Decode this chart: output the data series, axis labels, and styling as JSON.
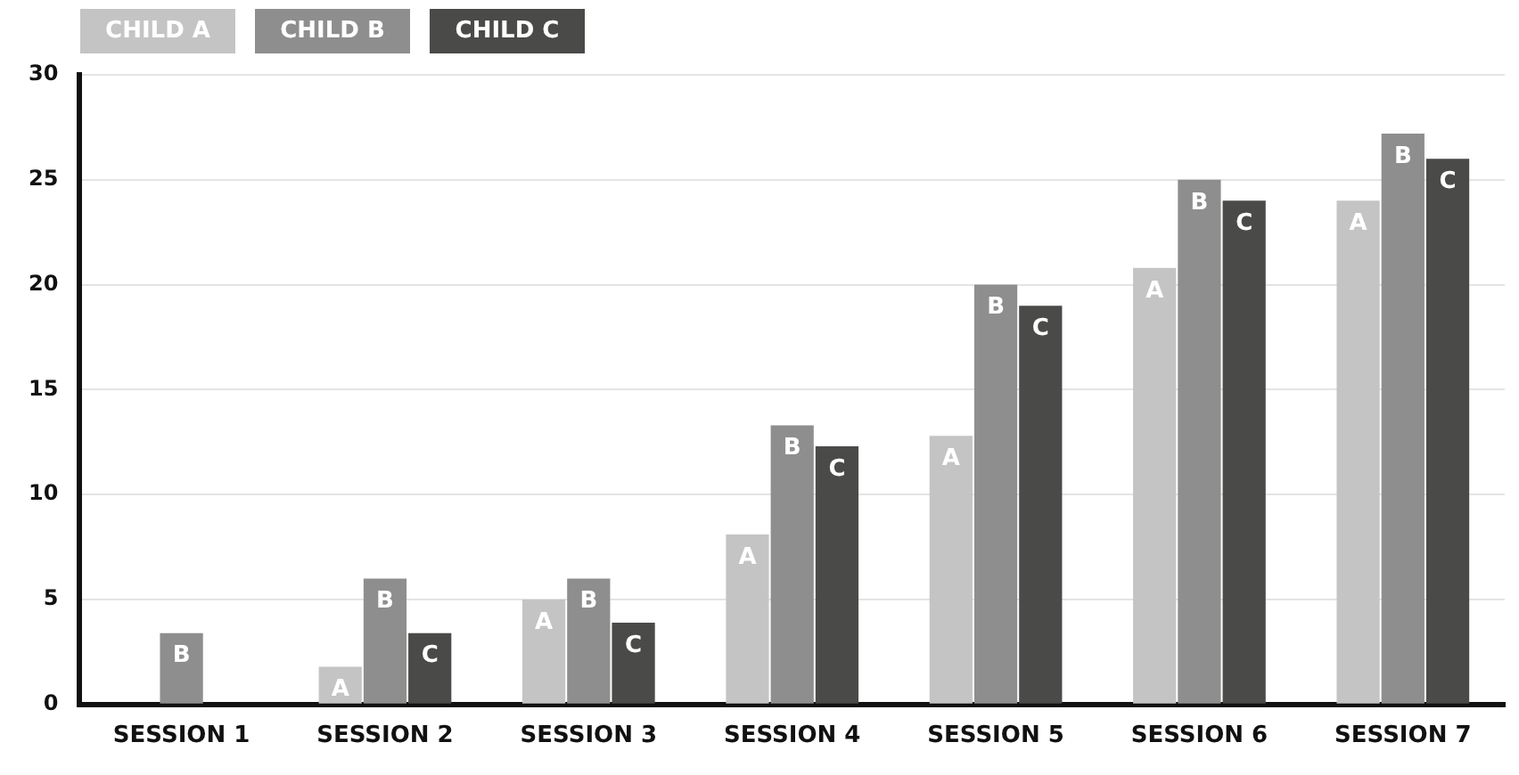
{
  "chart_data": {
    "type": "bar",
    "categories": [
      "SESSION 1",
      "SESSION 2",
      "SESSION 3",
      "SESSION 4",
      "SESSION 5",
      "SESSION 6",
      "SESSION 7"
    ],
    "series": [
      {
        "name": "CHILD A",
        "color": "#c4c4c4",
        "values": [
          null,
          1.8,
          5,
          8.1,
          12.8,
          20.8,
          24
        ],
        "value_labels": [
          null,
          "A",
          "A",
          "A",
          "A",
          "A",
          "A"
        ]
      },
      {
        "name": "CHILD B",
        "color": "#8e8e8e",
        "values": [
          3.4,
          6,
          6,
          13.3,
          20,
          25,
          27.2
        ],
        "value_labels": [
          "B",
          "B",
          "B",
          "B",
          "B",
          "B",
          "B"
        ]
      },
      {
        "name": "CHILD C",
        "color": "#4a4a49",
        "values": [
          null,
          3.4,
          3.9,
          12.3,
          19,
          24,
          26
        ],
        "value_labels": [
          null,
          "C",
          "C",
          "C",
          "C",
          "C",
          "C"
        ]
      }
    ],
    "ylim": [
      0,
      30
    ],
    "yticks": [
      0,
      5,
      10,
      15,
      20,
      25,
      30
    ],
    "grid": "y",
    "legend": "top left"
  }
}
